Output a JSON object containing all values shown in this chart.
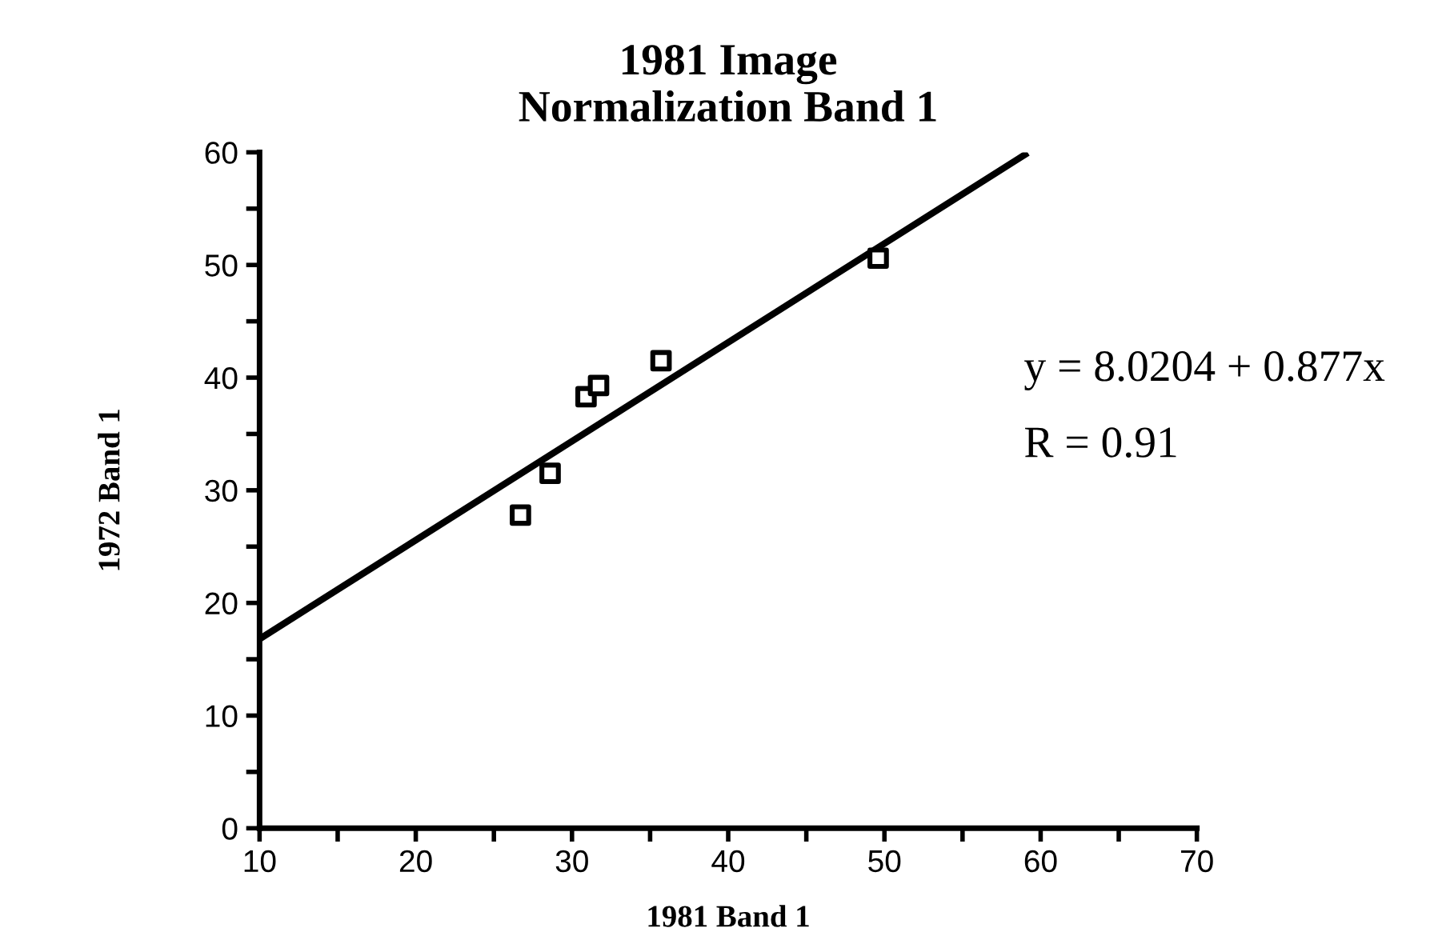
{
  "chart_data": {
    "type": "scatter",
    "title": "1981 Image\nNormalization Band 1",
    "xlabel": "1981 Band 1",
    "ylabel": "1972 Band 1",
    "annotations": [
      "y = 8.0204 + 0.877x",
      "R = 0.91"
    ],
    "series": [
      {
        "color": "#000000",
        "marker": "square",
        "x": [
          26.7,
          28.6,
          30.9,
          31.7,
          35.7,
          49.6
        ],
        "values": [
          27.8,
          31.5,
          38.3,
          39.3,
          41.5,
          50.6
        ]
      },
      {
        "type": "line",
        "color": "#000000",
        "marker": "none",
        "x": [
          10,
          59
        ],
        "values": [
          16.8,
          59.8
        ]
      }
    ],
    "xlim": [
      10,
      70
    ],
    "ylim": [
      0,
      60
    ],
    "xticks": [
      10,
      {
        "value": 15,
        "label": null
      },
      20,
      {
        "value": 25,
        "label": null
      },
      30,
      {
        "value": 35,
        "label": null
      },
      40,
      {
        "value": 45,
        "label": null
      },
      50,
      {
        "value": 55,
        "label": null
      },
      60,
      {
        "value": 65,
        "label": null
      },
      70
    ],
    "yticks": [
      0,
      {
        "value": 5,
        "label": null
      },
      10,
      {
        "value": 15,
        "label": null
      },
      20,
      {
        "value": 25,
        "label": null
      },
      30,
      {
        "value": 35,
        "label": null
      },
      40,
      {
        "value": 45,
        "label": null
      },
      50,
      {
        "value": 55,
        "label": null
      },
      60
    ],
    "grid": false,
    "legend": false
  }
}
